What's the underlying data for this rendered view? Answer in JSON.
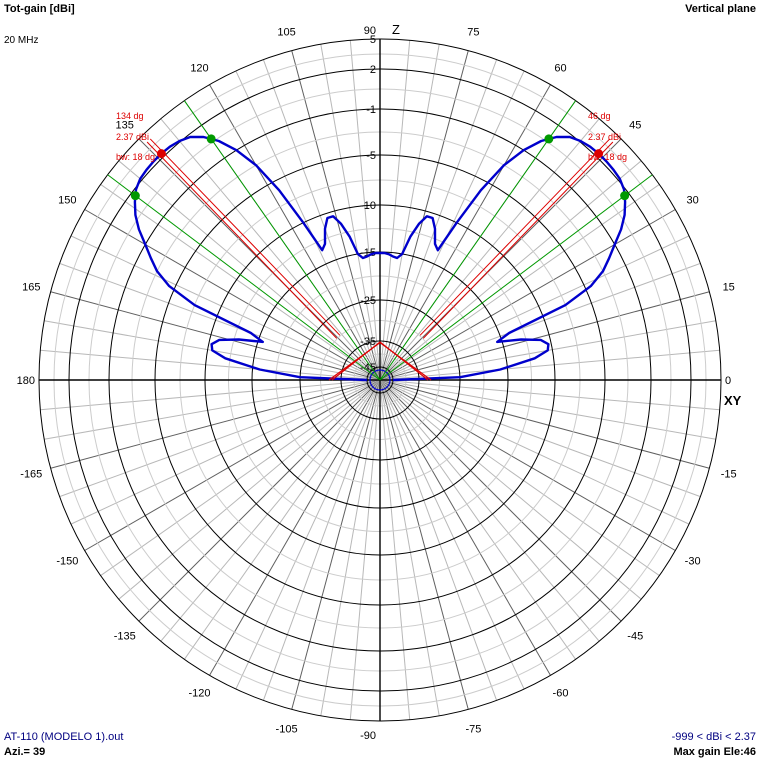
{
  "header": {
    "title": "Tot-gain [dBi]",
    "frequency": "20 MHz",
    "plane": "Vertical plane"
  },
  "footer": {
    "file": "AT-110 (MODELO 1).out",
    "azimuth": "Azi.= 39",
    "gain_range": "-999 < dBi < 2.37",
    "max_gain": "Max gain Ele:46"
  },
  "colors": {
    "pattern": "#0000cc",
    "max_gain_marker": "#dd0000",
    "beamwidth_marker": "#009900",
    "grid": "#000000"
  },
  "chart_data": {
    "type": "polar",
    "units": "dBi",
    "scale_ticks": [
      "5",
      "2",
      "-1",
      "-5",
      "-10",
      "-15",
      "-25",
      "-35",
      "-45"
    ],
    "angle_labels": [
      {
        "deg": 0,
        "text": "0"
      },
      {
        "deg": 15,
        "text": "15"
      },
      {
        "deg": 30,
        "text": "30"
      },
      {
        "deg": 45,
        "text": "45"
      },
      {
        "deg": 60,
        "text": "60"
      },
      {
        "deg": 75,
        "text": "75"
      },
      {
        "deg": 90,
        "text": "90"
      },
      {
        "deg": 105,
        "text": "105"
      },
      {
        "deg": 120,
        "text": "120"
      },
      {
        "deg": 135,
        "text": "135"
      },
      {
        "deg": 150,
        "text": "150"
      },
      {
        "deg": 165,
        "text": "165"
      },
      {
        "deg": 180,
        "text": "180"
      },
      {
        "deg": -15,
        "text": "-15"
      },
      {
        "deg": -30,
        "text": "-30"
      },
      {
        "deg": -45,
        "text": "-45"
      },
      {
        "deg": -60,
        "text": "-60"
      },
      {
        "deg": -75,
        "text": "-75"
      },
      {
        "deg": -90,
        "text": "-90"
      },
      {
        "deg": -105,
        "text": "-105"
      },
      {
        "deg": -120,
        "text": "-120"
      },
      {
        "deg": -135,
        "text": "-135"
      },
      {
        "deg": -150,
        "text": "-150"
      },
      {
        "deg": -165,
        "text": "-165"
      }
    ],
    "axis_labels": {
      "vertical": "Z",
      "horizontal": "XY"
    },
    "series": [
      {
        "elevation_deg": [
          0,
          2,
          5,
          8,
          10,
          12,
          14,
          16,
          18,
          20,
          22,
          24,
          26,
          28,
          30,
          32,
          34,
          36,
          38,
          40,
          42,
          44,
          46,
          48,
          50,
          52,
          54,
          56,
          58,
          60,
          62,
          64,
          66,
          68,
          70,
          72,
          74,
          76,
          78,
          80,
          82,
          84,
          86,
          88,
          90
        ],
        "gain_dbi": [
          -45,
          -25,
          -16.5,
          -12,
          -10.5,
          -10.3,
          -11,
          -13,
          -16,
          -14,
          -7.5,
          -4.5,
          -3,
          -2,
          -1.0,
          0.0,
          0.8,
          1.4,
          1.9,
          2.2,
          2.32,
          2.37,
          2.37,
          2.3,
          2.1,
          1.8,
          1.2,
          0.3,
          -1.0,
          -3.0,
          -6.0,
          -10.0,
          -13.5,
          -13.0,
          -11.5,
          -10.5,
          -10.5,
          -11.5,
          -13.0,
          -15.0,
          -16.0,
          -15.8,
          -15.4,
          -15.2,
          -15.2
        ]
      }
    ],
    "markers": {
      "left": {
        "angle_label": "134 dg",
        "gain_label": "2.37 dBi",
        "bw_label": "bw: 18 dg"
      },
      "right": {
        "angle_label": "46 dg",
        "gain_label": "2.37 dBi",
        "bw_label": "bw: 18 dg"
      },
      "beamwidth_edges_deg": [
        37,
        55
      ]
    }
  }
}
